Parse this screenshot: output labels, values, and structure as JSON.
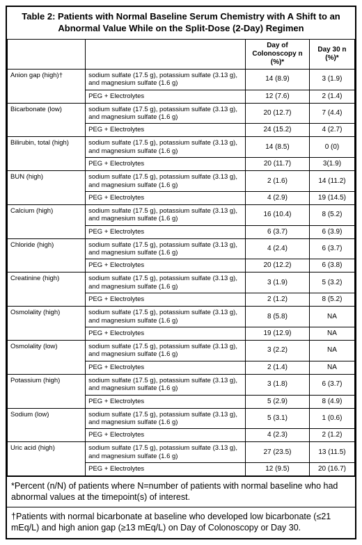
{
  "title": "Table 2: Patients with Normal Baseline Serum Chemistry with A Shift to an Abnormal Value While on the Split-Dose (2-Day) Regimen",
  "headers": {
    "param": "",
    "treat": "",
    "day_col": "Day of Colonoscopy n (%)*",
    "day30": "Day 30 n (%)*"
  },
  "treatments": {
    "sulfate": "sodium sulfate (17.5 g), potassium sulfate (3.13 g), and magnesium sulfate (1.6 g)",
    "peg": "PEG + Electrolytes"
  },
  "rows": [
    {
      "param": "Anion gap (high)†",
      "sulf_d1": "14 (8.9)",
      "sulf_d30": "3 (1.9)",
      "peg_d1": "12 (7.6)",
      "peg_d30": "2 (1.4)"
    },
    {
      "param": "Bicarbonate (low)",
      "sulf_d1": "20 (12.7)",
      "sulf_d30": "7 (4.4)",
      "peg_d1": "24 (15.2)",
      "peg_d30": "4 (2.7)"
    },
    {
      "param": "Bilirubin, total (high)",
      "sulf_d1": "14 (8.5)",
      "sulf_d30": "0 (0)",
      "peg_d1": "20 (11.7)",
      "peg_d30": "3(1.9)"
    },
    {
      "param": "BUN (high)",
      "sulf_d1": "2 (1.6)",
      "sulf_d30": "14 (11.2)",
      "peg_d1": "4 (2.9)",
      "peg_d30": "19 (14.5)"
    },
    {
      "param": "Calcium (high)",
      "sulf_d1": "16 (10.4)",
      "sulf_d30": "8 (5.2)",
      "peg_d1": "6 (3.7)",
      "peg_d30": "6 (3.9)"
    },
    {
      "param": "Chloride (high)",
      "sulf_d1": "4 (2.4)",
      "sulf_d30": "6 (3.7)",
      "peg_d1": "20 (12.2)",
      "peg_d30": "6 (3.8)"
    },
    {
      "param": "Creatinine (high)",
      "sulf_d1": "3 (1.9)",
      "sulf_d30": "5 (3.2)",
      "peg_d1": "2 (1.2)",
      "peg_d30": "8 (5.2)"
    },
    {
      "param": "Osmolality (high)",
      "sulf_d1": "8 (5.8)",
      "sulf_d30": "NA",
      "peg_d1": "19 (12.9)",
      "peg_d30": "NA"
    },
    {
      "param": "Osmolality (low)",
      "sulf_d1": "3 (2.2)",
      "sulf_d30": "NA",
      "peg_d1": "2 (1.4)",
      "peg_d30": "NA"
    },
    {
      "param": "Potassium (high)",
      "sulf_d1": "3 (1.8)",
      "sulf_d30": "6 (3.7)",
      "peg_d1": "5 (2.9)",
      "peg_d30": "8 (4.9)"
    },
    {
      "param": "Sodium (low)",
      "sulf_d1": "5 (3.1)",
      "sulf_d30": "1 (0.6)",
      "peg_d1": "4 (2.3)",
      "peg_d30": "2 (1.2)"
    },
    {
      "param": "Uric acid (high)",
      "sulf_d1": "27 (23.5)",
      "sulf_d30": "13 (11.5)",
      "peg_d1": "12 (9.5)",
      "peg_d30": "20 (16.7)"
    }
  ],
  "footnotes": {
    "f1": "*Percent (n/N) of patients where N=number of patients with normal baseline who had abnormal values at the timepoint(s) of interest.",
    "f2": "†Patients with normal bicarbonate at baseline who developed low bicarbonate (≤21 mEq/L) and high anion gap (≥13 mEq/L) on Day of Colonoscopy or Day 30."
  },
  "style": {
    "border_color": "#000000",
    "background": "#ffffff",
    "text_color": "#000000",
    "title_fontsize": 13,
    "body_fontsize": 10,
    "footnote_fontsize": 12.5
  }
}
